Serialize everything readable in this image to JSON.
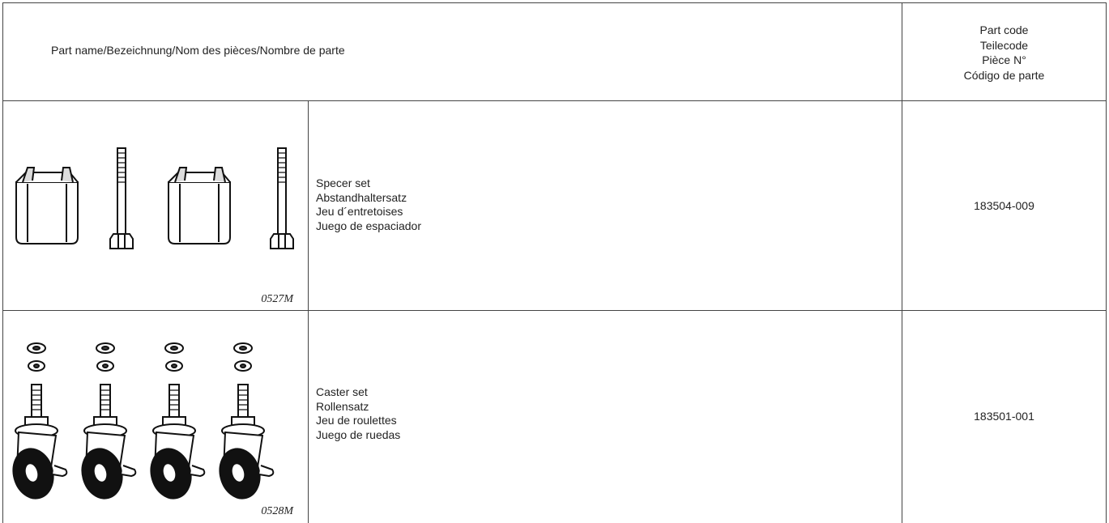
{
  "header": {
    "name": "Part name/Bezeichnung/Nom des pièces/Nombre de parte",
    "code": [
      "Part code",
      "Teilecode",
      "Pièce N°",
      "Código de parte"
    ]
  },
  "rows": [
    {
      "figure": "0527M",
      "names": [
        "Specer set",
        "Abstandhaltersatz",
        "Jeu d´entretoises",
        "Juego de espaciador"
      ],
      "code": "183504-009"
    },
    {
      "figure": "0528M",
      "names": [
        "Caster set",
        "Rollensatz",
        "Jeu de roulettes",
        "Juego de ruedas"
      ],
      "code": "183501-001"
    }
  ]
}
